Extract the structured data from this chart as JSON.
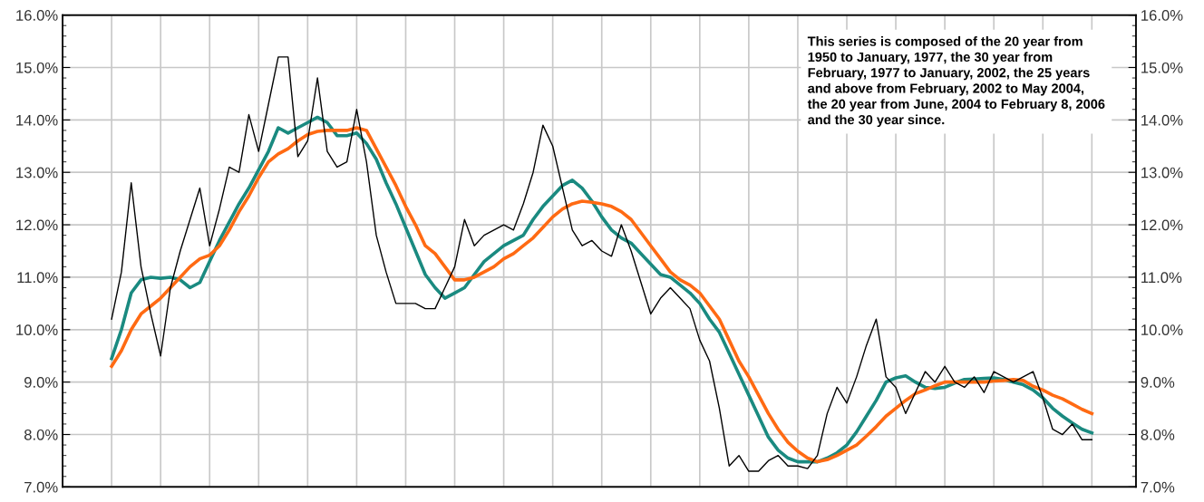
{
  "chart_data": {
    "type": "line",
    "annotations": [
      "This series is composed of the 20 year from\n1950 to January, 1977, the 30 year from\nFebruary, 1977 to January, 2002, the 25 years\nand above from February, 2002 to May 2004,\nthe 20 year from June, 2004 to February 8, 2006\nand the 30 year since."
    ],
    "categories": [
      null,
      null,
      null,
      null,
      null,
      null,
      null,
      null,
      null,
      null,
      null,
      null,
      null,
      null,
      null,
      null,
      null,
      null,
      null,
      null,
      null,
      null,
      null,
      null,
      null,
      null,
      null,
      null,
      null,
      null,
      null,
      null,
      null,
      null,
      null,
      null,
      null,
      null,
      null,
      null,
      null,
      null,
      null,
      null,
      null,
      null,
      null,
      null,
      null,
      null,
      null,
      null,
      null,
      null,
      null,
      null,
      null,
      null,
      null,
      null,
      null,
      null,
      null,
      null,
      null,
      null,
      null,
      null,
      null,
      null,
      null,
      null,
      null,
      null,
      null,
      null,
      null,
      null,
      null,
      null,
      null,
      null,
      null,
      null,
      null,
      null,
      null,
      null,
      null,
      null,
      null,
      null,
      null,
      null,
      null,
      null,
      null,
      null,
      null,
      null,
      null
    ],
    "ylim": [
      7,
      16
    ],
    "yticks": [
      {
        "value": 7,
        "label": "7.0%"
      },
      {
        "value": 8,
        "label": "8.0%"
      },
      {
        "value": 9,
        "label": "9.0%"
      },
      {
        "value": 10,
        "label": "10.0%"
      },
      {
        "value": 11,
        "label": "11.0%"
      },
      {
        "value": 12,
        "label": "12.0%"
      },
      {
        "value": 13,
        "label": "13.0%"
      },
      {
        "value": 14,
        "label": "14.0%"
      },
      {
        "value": 15,
        "label": "15.0%"
      },
      {
        "value": 16,
        "label": "16.0%"
      }
    ],
    "y2lim": [
      7,
      16
    ],
    "y2ticks": [
      {
        "value": 7,
        "label": "7.0%"
      },
      {
        "value": 8,
        "label": "8.0%"
      },
      {
        "value": 9,
        "label": "9.0%"
      },
      {
        "value": 10,
        "label": "10.0%"
      },
      {
        "value": 11,
        "label": "11.0%"
      },
      {
        "value": 12,
        "label": "12.0%"
      },
      {
        "value": 13,
        "label": "13.0%"
      },
      {
        "value": 14,
        "label": "14.0%"
      },
      {
        "value": 15,
        "label": "15.0%"
      },
      {
        "value": 16,
        "label": "16.0%"
      }
    ],
    "grid": true,
    "marker": "none",
    "line_style": "solid",
    "series": [
      {
        "color": "#000000",
        "values": [
          10.2,
          11.1,
          12.8,
          11.2,
          10.3,
          9.5,
          10.8,
          11.5,
          12.1,
          12.7,
          11.6,
          12.3,
          13.1,
          13.0,
          14.1,
          13.4,
          14.3,
          15.2,
          15.2,
          13.3,
          13.6,
          14.8,
          13.4,
          13.1,
          13.2,
          14.2,
          13.2,
          11.8,
          11.1,
          10.5,
          10.5,
          10.5,
          10.4,
          10.4,
          10.8,
          11.2,
          12.1,
          11.6,
          11.8,
          11.9,
          12.0,
          11.9,
          12.4,
          13.0,
          13.9,
          13.5,
          12.7,
          11.9,
          11.6,
          11.7,
          11.5,
          11.4,
          12.0,
          11.5,
          10.9,
          10.3,
          10.6,
          10.8,
          10.6,
          10.4,
          9.8,
          9.4,
          8.5,
          7.4,
          7.6,
          7.3,
          7.3,
          7.5,
          7.6,
          7.4,
          7.4,
          7.35,
          7.6,
          8.4,
          8.9,
          8.6,
          9.1,
          9.7,
          10.2,
          9.1,
          8.9,
          8.4,
          8.8,
          9.2,
          9.0,
          9.3,
          9.0,
          8.9,
          9.1,
          8.8,
          9.2,
          9.1,
          9.0,
          9.1,
          9.2,
          8.7,
          8.1,
          8.0,
          8.2,
          7.9,
          7.9
        ]
      },
      {
        "color": "#1a8a80",
        "values": [
          9.45,
          10.0,
          10.7,
          10.95,
          11.0,
          10.98,
          11.0,
          10.95,
          10.8,
          10.9,
          11.3,
          11.7,
          12.05,
          12.4,
          12.7,
          13.05,
          13.4,
          13.85,
          13.75,
          13.85,
          13.95,
          14.05,
          13.95,
          13.7,
          13.7,
          13.75,
          13.55,
          13.25,
          12.8,
          12.4,
          11.95,
          11.5,
          11.05,
          10.8,
          10.6,
          10.7,
          10.8,
          11.05,
          11.3,
          11.45,
          11.6,
          11.7,
          11.8,
          12.1,
          12.35,
          12.55,
          12.75,
          12.85,
          12.7,
          12.45,
          12.15,
          11.9,
          11.75,
          11.65,
          11.45,
          11.25,
          11.05,
          11.0,
          10.85,
          10.7,
          10.5,
          10.2,
          9.95,
          9.55,
          9.15,
          8.75,
          8.35,
          7.95,
          7.7,
          7.55,
          7.48,
          7.48,
          7.48,
          7.55,
          7.65,
          7.8,
          8.05,
          8.35,
          8.65,
          9.0,
          9.08,
          9.12,
          9.0,
          8.9,
          8.88,
          8.9,
          8.98,
          9.05,
          9.06,
          9.07,
          9.08,
          9.05,
          9.0,
          8.95,
          8.85,
          8.7,
          8.5,
          8.35,
          8.22,
          8.1,
          8.03
        ]
      },
      {
        "color": "#ff6a13",
        "values": [
          9.3,
          9.6,
          10.0,
          10.3,
          10.45,
          10.6,
          10.8,
          11.0,
          11.2,
          11.35,
          11.42,
          11.6,
          11.9,
          12.25,
          12.55,
          12.9,
          13.2,
          13.35,
          13.45,
          13.6,
          13.72,
          13.78,
          13.8,
          13.8,
          13.8,
          13.85,
          13.8,
          13.45,
          13.1,
          12.75,
          12.35,
          12.0,
          11.6,
          11.45,
          11.2,
          10.95,
          10.95,
          11.0,
          11.1,
          11.2,
          11.35,
          11.45,
          11.6,
          11.75,
          11.95,
          12.15,
          12.3,
          12.4,
          12.45,
          12.43,
          12.4,
          12.35,
          12.25,
          12.1,
          11.85,
          11.6,
          11.35,
          11.1,
          10.95,
          10.85,
          10.7,
          10.45,
          10.2,
          9.8,
          9.4,
          9.1,
          8.75,
          8.4,
          8.1,
          7.85,
          7.68,
          7.55,
          7.48,
          7.52,
          7.6,
          7.7,
          7.8,
          7.97,
          8.15,
          8.35,
          8.5,
          8.65,
          8.78,
          8.85,
          8.93,
          9.0,
          9.0,
          9.0,
          9.0,
          9.0,
          9.02,
          9.03,
          9.05,
          9.03,
          8.92,
          8.85,
          8.75,
          8.68,
          8.58,
          8.48,
          8.4
        ]
      }
    ]
  }
}
